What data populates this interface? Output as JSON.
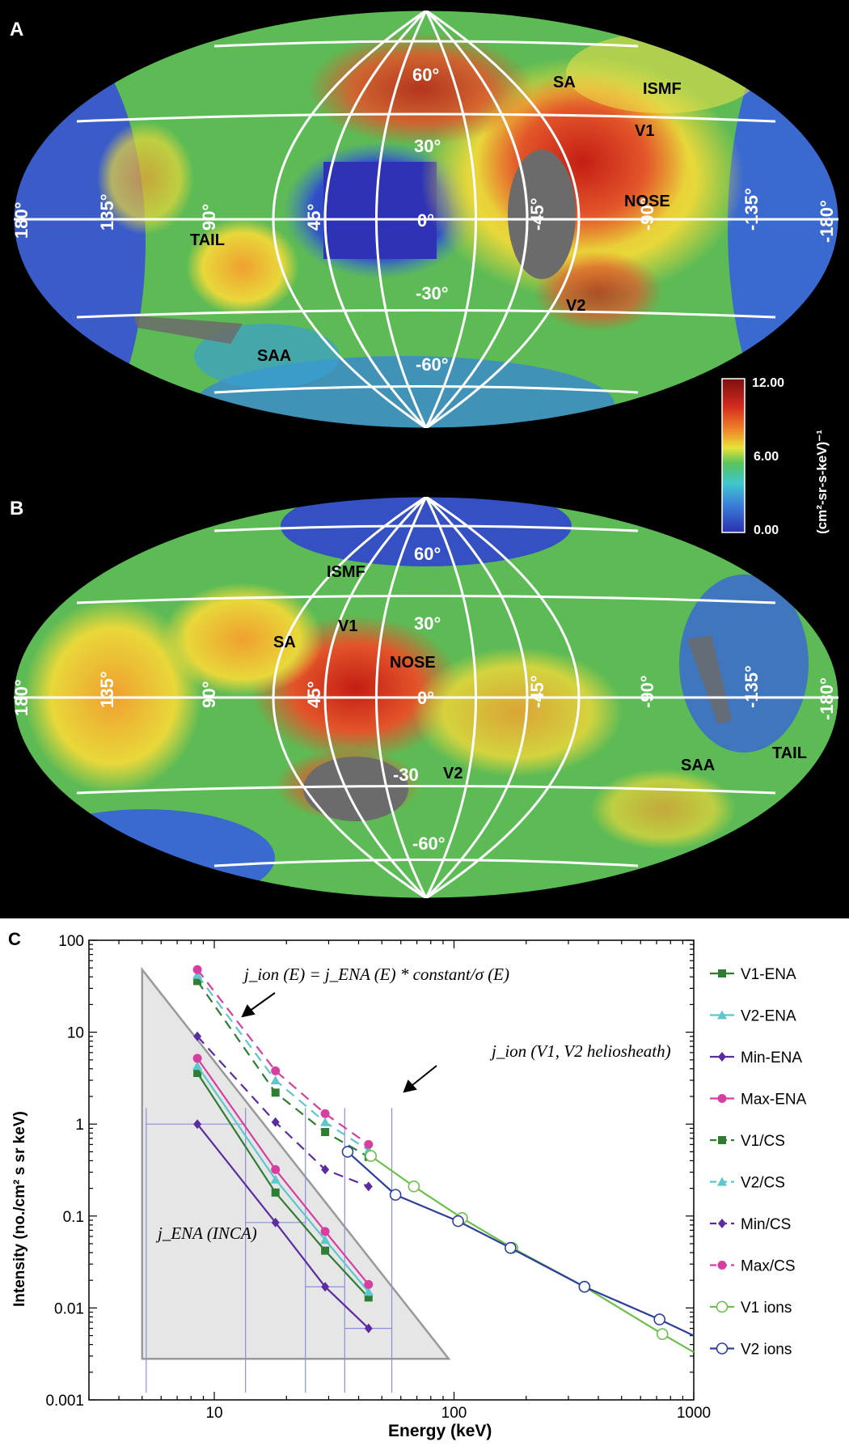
{
  "panels": {
    "A": {
      "letter": "A",
      "grid_lat_labels": [
        "60°",
        "30°",
        "0°",
        "-30°",
        "-60°"
      ],
      "grid_lon_labels": [
        "180°",
        "135°",
        "90°",
        "45°",
        "-45°",
        "-90°",
        "-135°",
        "-180°"
      ],
      "regions": [
        "SA",
        "ISMF",
        "V1",
        "NOSE",
        "TAIL",
        "V2",
        "SAA"
      ]
    },
    "B": {
      "letter": "B",
      "grid_lat_labels": [
        "60°",
        "30°",
        "-30",
        "-60°"
      ],
      "grid_lon_labels": [
        "180°",
        "135°",
        "90°",
        "45°",
        "0°",
        "-45°",
        "-90°",
        "-135°",
        "-180°"
      ],
      "regions": [
        "ISMF",
        "V1",
        "SA",
        "NOSE",
        "V2",
        "SAA",
        "TAIL"
      ]
    },
    "colorbar": {
      "ticks": [
        "12.00",
        "6.00",
        "0.00"
      ],
      "unit": "(cm²-sr-s-keV)⁻¹",
      "colors": [
        "#2b2fb0",
        "#3a7fd8",
        "#3fc7d0",
        "#57c35a",
        "#e8e43a",
        "#f08a2a",
        "#d42a1f",
        "#7a1010"
      ]
    },
    "C": {
      "letter": "C"
    }
  },
  "chart_data": {
    "type": "line",
    "xlabel": "Energy (keV)",
    "ylabel": "Intensity (no./cm² s sr keV)",
    "xscale": "log",
    "yscale": "log",
    "xlim": [
      3,
      1000
    ],
    "ylim": [
      0.001,
      100
    ],
    "x_ticks": [
      "10",
      "100",
      "1000"
    ],
    "y_ticks": [
      "0.001",
      "0.01",
      "0.1",
      "1",
      "10",
      "100"
    ],
    "annotations": {
      "eq": "j_ion (E) = j_ENA (E) * constant/σ (E)",
      "helio": "j_ion (V1, V2 heliosheath)",
      "inca": "j_ENA (INCA)"
    },
    "series": [
      {
        "name": "V1-ENA",
        "color": "#2e7d32",
        "marker": "square",
        "dashed": false,
        "x": [
          8.5,
          18,
          29,
          44
        ],
        "y": [
          3.6,
          0.18,
          0.042,
          0.013
        ]
      },
      {
        "name": "V2-ENA",
        "color": "#5cc8cc",
        "marker": "triangle",
        "dashed": false,
        "x": [
          8.5,
          18,
          29,
          44
        ],
        "y": [
          4.3,
          0.25,
          0.055,
          0.015
        ]
      },
      {
        "name": "Min-ENA",
        "color": "#5b2ca0",
        "marker": "diamond",
        "dashed": false,
        "x": [
          8.5,
          18,
          29,
          44
        ],
        "y": [
          1.0,
          0.085,
          0.017,
          0.006
        ]
      },
      {
        "name": "Max-ENA",
        "color": "#d63fa0",
        "marker": "circle",
        "dashed": false,
        "x": [
          8.5,
          18,
          29,
          44
        ],
        "y": [
          5.2,
          0.32,
          0.068,
          0.018
        ]
      },
      {
        "name": "V1/CS",
        "color": "#2e7d32",
        "marker": "square",
        "dashed": true,
        "x": [
          8.5,
          18,
          29,
          44
        ],
        "y": [
          36,
          2.2,
          0.82,
          0.44
        ]
      },
      {
        "name": "V2/CS",
        "color": "#5cc8cc",
        "marker": "triangle",
        "dashed": true,
        "x": [
          8.5,
          18,
          29,
          44
        ],
        "y": [
          42,
          3.0,
          1.05,
          0.52
        ]
      },
      {
        "name": "Min/CS",
        "color": "#5b2ca0",
        "marker": "diamond",
        "dashed": true,
        "x": [
          8.5,
          18,
          29,
          44
        ],
        "y": [
          9.0,
          1.05,
          0.32,
          0.21
        ]
      },
      {
        "name": "Max/CS",
        "color": "#d63fa0",
        "marker": "circle",
        "dashed": true,
        "x": [
          8.5,
          18,
          29,
          44
        ],
        "y": [
          48,
          3.8,
          1.3,
          0.6
        ]
      },
      {
        "name": "V1 ions",
        "color": "#6cc04a",
        "marker": "open-circle",
        "dashed": false,
        "x": [
          45,
          68,
          108,
          175,
          350,
          740,
          1000
        ],
        "y": [
          0.45,
          0.21,
          0.095,
          0.045,
          0.017,
          0.0052,
          0.0033
        ]
      },
      {
        "name": "V2 ions",
        "color": "#2e3f9a",
        "marker": "open-circle",
        "dashed": false,
        "x": [
          36,
          57,
          104,
          172,
          350,
          720,
          1000
        ],
        "y": [
          0.5,
          0.17,
          0.088,
          0.045,
          0.017,
          0.0075,
          0.005
        ]
      }
    ]
  }
}
